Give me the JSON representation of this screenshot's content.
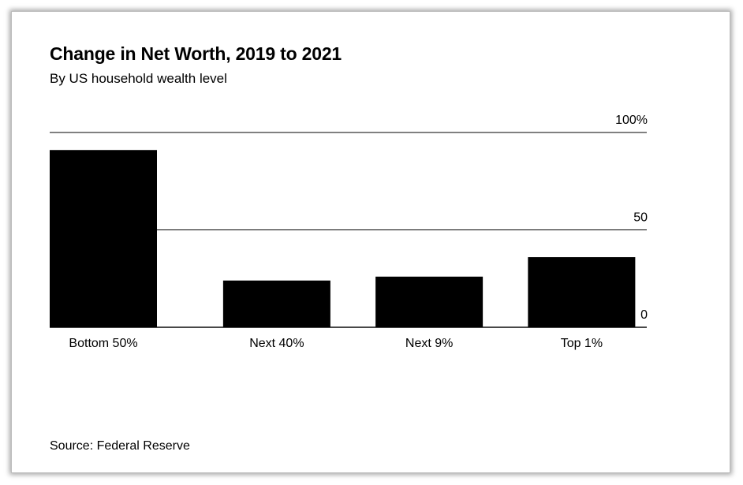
{
  "title": "Change in Net Worth, 2019 to 2021",
  "subtitle": "By US household wealth level",
  "source": "Source: Federal Reserve",
  "chart_data": {
    "type": "bar",
    "categories": [
      "Bottom 50%",
      "Next 40%",
      "Next 9%",
      "Top 1%"
    ],
    "values": [
      91,
      24,
      26,
      36
    ],
    "ylim": [
      0,
      100
    ],
    "yticks": [
      0,
      50,
      100
    ],
    "ytick_labels": [
      "0",
      "50",
      "100%"
    ],
    "y_axis_side": "right",
    "grid": true,
    "bar_color": "#000000",
    "grid_color": "#000000",
    "xlabel": "",
    "ylabel": ""
  }
}
